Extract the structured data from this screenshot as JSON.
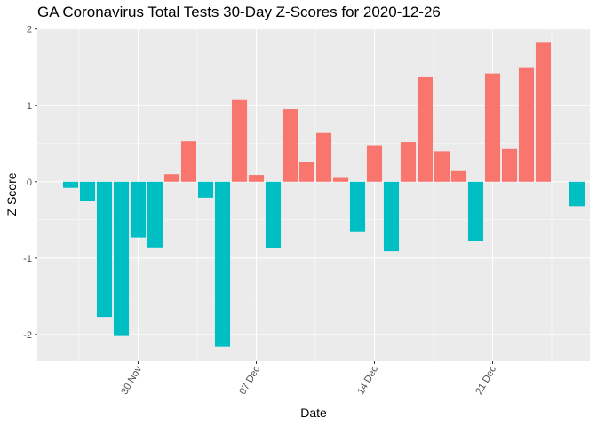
{
  "chart_data": {
    "type": "bar",
    "title": "GA Coronavirus Total Tests 30-Day Z-Scores for 2020-12-26",
    "xlabel": "Date",
    "ylabel": "Z Score",
    "x_ticks": [
      "30 Nov",
      "07 Dec",
      "14 Dec",
      "21 Dec"
    ],
    "y_ticks": [
      "-2",
      "-1",
      "0",
      "1",
      "2"
    ],
    "ylim": [
      -2.35,
      2.02
    ],
    "grid": true,
    "colors": {
      "positive": "#F8766D",
      "negative": "#00BFC4",
      "panel": "#EBEBEB",
      "grid": "#FFFFFF"
    },
    "categories": [
      "2020-11-26",
      "2020-11-27",
      "2020-11-28",
      "2020-11-29",
      "2020-11-30",
      "2020-12-01",
      "2020-12-02",
      "2020-12-03",
      "2020-12-04",
      "2020-12-05",
      "2020-12-06",
      "2020-12-07",
      "2020-12-08",
      "2020-12-09",
      "2020-12-10",
      "2020-12-11",
      "2020-12-12",
      "2020-12-13",
      "2020-12-14",
      "2020-12-15",
      "2020-12-16",
      "2020-12-17",
      "2020-12-18",
      "2020-12-19",
      "2020-12-20",
      "2020-12-21",
      "2020-12-22",
      "2020-12-23",
      "2020-12-24",
      "2020-12-25",
      "2020-12-26"
    ],
    "values": [
      -0.08,
      -0.25,
      -1.77,
      -2.02,
      -0.73,
      -0.86,
      0.1,
      0.53,
      -0.21,
      -2.16,
      1.07,
      0.09,
      -0.87,
      0.95,
      0.26,
      0.64,
      0.05,
      -0.65,
      0.48,
      -0.91,
      0.52,
      1.37,
      0.4,
      0.14,
      -0.77,
      1.42,
      0.43,
      1.49,
      1.83,
      0.0,
      -0.32
    ]
  }
}
